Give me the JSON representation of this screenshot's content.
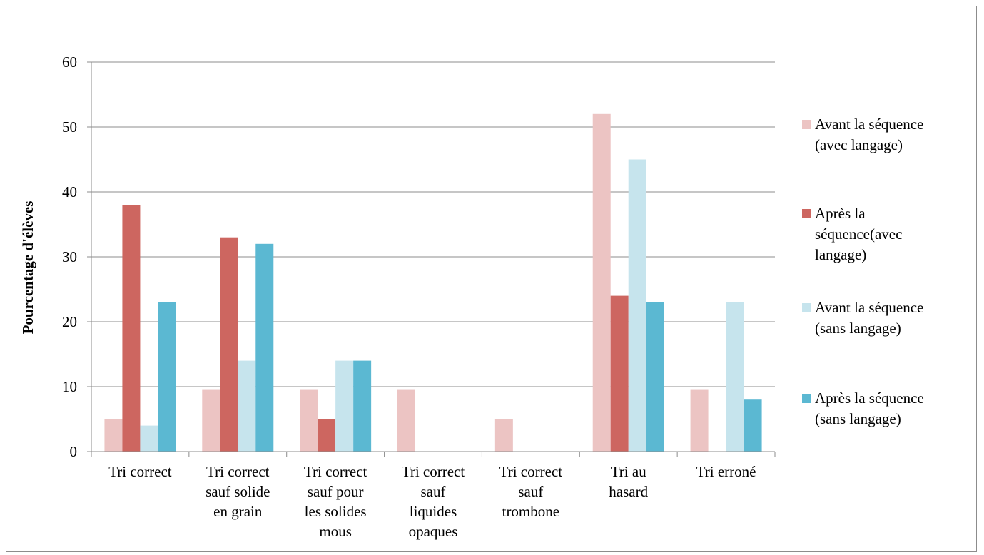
{
  "chart_data": {
    "type": "bar",
    "title": "",
    "xlabel": "",
    "ylabel": "Pourcentage d'élèves",
    "ylim": [
      0,
      60
    ],
    "yticks": [
      0,
      10,
      20,
      30,
      40,
      50,
      60
    ],
    "grid": true,
    "legend_position": "right",
    "categories": [
      [
        "Tri correct"
      ],
      [
        "Tri correct",
        "sauf solide",
        "en grain"
      ],
      [
        "Tri correct",
        "sauf pour",
        "les solides",
        "mous"
      ],
      [
        "Tri correct",
        "sauf",
        "liquides",
        "opaques"
      ],
      [
        "Tri correct",
        "sauf",
        "trombone"
      ],
      [
        "Tri au",
        "hasard"
      ],
      [
        "Tri erroné"
      ]
    ],
    "series": [
      {
        "name": [
          "Avant la séquence",
          "(avec langage)"
        ],
        "color": "#ecc4c3",
        "values": [
          5,
          9.5,
          9.5,
          9.5,
          5,
          52,
          9.5
        ]
      },
      {
        "name": [
          "Après la",
          "séquence(avec",
          "langage)"
        ],
        "color": "#cd6660",
        "values": [
          38,
          33,
          5,
          0,
          0,
          24,
          0
        ]
      },
      {
        "name": [
          "Avant la séquence",
          "(sans langage)"
        ],
        "color": "#c6e4ed",
        "values": [
          4,
          14,
          14,
          0,
          0,
          45,
          23
        ]
      },
      {
        "name": [
          "Après la séquence",
          "(sans langage)"
        ],
        "color": "#5bb8d2",
        "values": [
          23,
          32,
          14,
          0,
          0,
          23,
          8
        ]
      }
    ]
  }
}
